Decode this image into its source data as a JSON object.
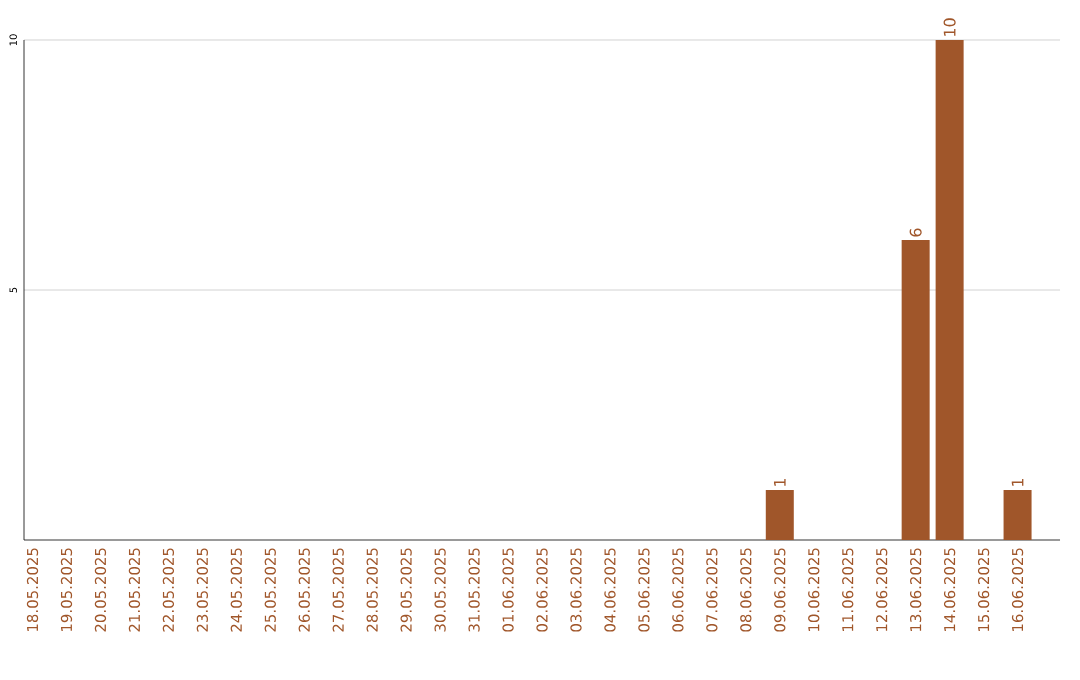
{
  "chart_data": {
    "type": "bar",
    "categories": [
      "18.05.2025",
      "19.05.2025",
      "20.05.2025",
      "21.05.2025",
      "22.05.2025",
      "23.05.2025",
      "24.05.2025",
      "25.05.2025",
      "26.05.2025",
      "27.05.2025",
      "28.05.2025",
      "29.05.2025",
      "30.05.2025",
      "31.05.2025",
      "01.06.2025",
      "02.06.2025",
      "03.06.2025",
      "04.06.2025",
      "05.06.2025",
      "06.06.2025",
      "07.06.2025",
      "08.06.2025",
      "09.06.2025",
      "10.06.2025",
      "11.06.2025",
      "12.06.2025",
      "13.06.2025",
      "14.06.2025",
      "15.06.2025",
      "16.06.2025"
    ],
    "values": [
      0,
      0,
      0,
      0,
      0,
      0,
      0,
      0,
      0,
      0,
      0,
      0,
      0,
      0,
      0,
      0,
      0,
      0,
      0,
      0,
      0,
      0,
      1,
      0,
      0,
      0,
      6,
      10,
      0,
      1
    ],
    "value_labels": [
      null,
      null,
      null,
      null,
      null,
      null,
      null,
      null,
      null,
      null,
      null,
      null,
      null,
      null,
      null,
      null,
      null,
      null,
      null,
      null,
      null,
      null,
      "1",
      null,
      null,
      null,
      "6",
      "10",
      null,
      "1"
    ],
    "color": "#a0562a",
    "ylim": [
      0,
      10
    ],
    "yticks": [
      5,
      10
    ],
    "grid": "y"
  }
}
